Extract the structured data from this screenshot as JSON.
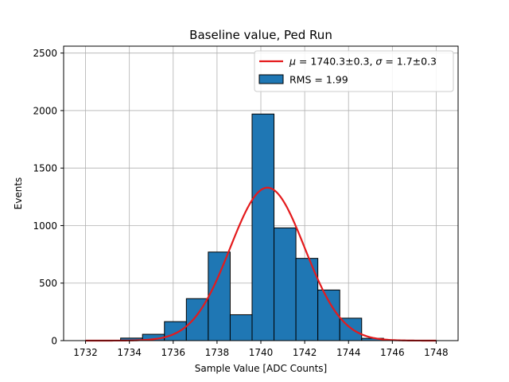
{
  "chart_data": {
    "type": "bar",
    "title": "Baseline value, Ped Run",
    "xlabel": "Sample Value [ADC Counts]",
    "ylabel": "Events",
    "xlim": [
      1731,
      1749
    ],
    "ylim": [
      0,
      2560
    ],
    "grid": true,
    "legend_position": "top-right",
    "x_ticks": [
      1732,
      1734,
      1736,
      1738,
      1740,
      1742,
      1744,
      1746,
      1748
    ],
    "y_ticks": [
      0,
      500,
      1000,
      1500,
      2000,
      2500
    ],
    "histogram": {
      "name": "RMS = 1.99",
      "bin_edges": [
        1733.6,
        1734.6,
        1735.6,
        1736.6,
        1737.6,
        1738.6,
        1739.6,
        1740.6,
        1741.6,
        1742.6,
        1743.6,
        1744.6,
        1745.6
      ],
      "values": [
        22,
        55,
        165,
        365,
        770,
        225,
        1970,
        980,
        715,
        440,
        195,
        20
      ],
      "color": "#1f77b4",
      "edgecolor": "#000000"
    },
    "fit": {
      "name_parts": {
        "mu_symbol": "μ",
        "mu_text": " = 1740.3±0.3, ",
        "sigma_symbol": "σ",
        "sigma_text": " = 1.7±0.3"
      },
      "mu": 1740.3,
      "sigma": 1.7,
      "amplitude": 1330,
      "x_range": [
        1732,
        1748
      ],
      "color": "#e41a1c"
    }
  }
}
